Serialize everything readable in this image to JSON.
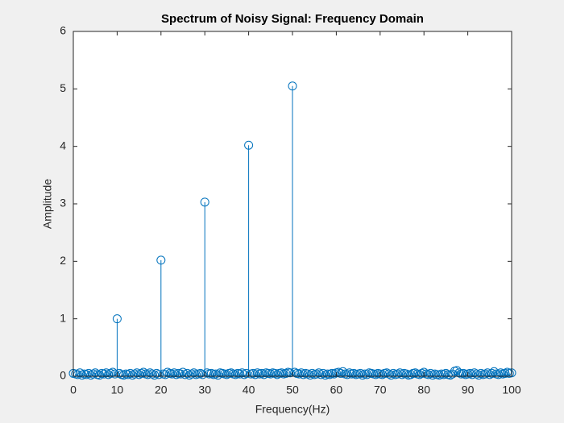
{
  "chart_data": {
    "type": "stem",
    "title": "Spectrum of Noisy Signal: Frequency Domain",
    "x_label": "Frequency(Hz)",
    "y_label": "Amplitude",
    "color": "#0072bd",
    "xlim": [
      0,
      100
    ],
    "ylim": [
      0,
      6
    ],
    "xticks": [
      0,
      10,
      20,
      30,
      40,
      50,
      60,
      70,
      80,
      90,
      100
    ],
    "yticks": [
      0,
      1,
      2,
      3,
      4,
      5,
      6
    ],
    "x": [
      0,
      0.5,
      1,
      1.5,
      2,
      2.5,
      3,
      3.5,
      4,
      4.5,
      5,
      5.5,
      6,
      6.5,
      7,
      7.5,
      8,
      8.5,
      9,
      9.5,
      10,
      10.5,
      11,
      11.5,
      12,
      12.5,
      13,
      13.5,
      14,
      14.5,
      15,
      15.5,
      16,
      16.5,
      17,
      17.5,
      18,
      18.5,
      19,
      19.5,
      20,
      20.5,
      21,
      21.5,
      22,
      22.5,
      23,
      23.5,
      24,
      24.5,
      25,
      25.5,
      26,
      26.5,
      27,
      27.5,
      28,
      28.5,
      29,
      29.5,
      30,
      30.5,
      31,
      31.5,
      32,
      32.5,
      33,
      33.5,
      34,
      34.5,
      35,
      35.5,
      36,
      36.5,
      37,
      37.5,
      38,
      38.5,
      39,
      39.5,
      40,
      40.5,
      41,
      41.5,
      42,
      42.5,
      43,
      43.5,
      44,
      44.5,
      45,
      45.5,
      46,
      46.5,
      47,
      47.5,
      48,
      48.5,
      49,
      49.5,
      50,
      50.5,
      51,
      51.5,
      52,
      52.5,
      53,
      53.5,
      54,
      54.5,
      55,
      55.5,
      56,
      56.5,
      57,
      57.5,
      58,
      58.5,
      59,
      59.5,
      60,
      60.5,
      61,
      61.5,
      62,
      62.5,
      63,
      63.5,
      64,
      64.5,
      65,
      65.5,
      66,
      66.5,
      67,
      67.5,
      68,
      68.5,
      69,
      69.5,
      70,
      70.5,
      71,
      71.5,
      72,
      72.5,
      73,
      73.5,
      74,
      74.5,
      75,
      75.5,
      76,
      76.5,
      77,
      77.5,
      78,
      78.5,
      79,
      79.5,
      80,
      80.5,
      81,
      81.5,
      82,
      82.5,
      83,
      83.5,
      84,
      84.5,
      85,
      85.5,
      86,
      86.5,
      87,
      87.5,
      88,
      88.5,
      89,
      89.5,
      90,
      90.5,
      91,
      91.5,
      92,
      92.5,
      93,
      93.5,
      94,
      94.5,
      95,
      95.5,
      96,
      96.5,
      97,
      97.5,
      98,
      98.5,
      99,
      99.5,
      100
    ],
    "values": [
      0.05,
      0.04,
      0.03,
      0.06,
      0.02,
      0.04,
      0.03,
      0.05,
      0.02,
      0.04,
      0.06,
      0.03,
      0.02,
      0.05,
      0.04,
      0.06,
      0.03,
      0.05,
      0.07,
      0.04,
      1.0,
      0.05,
      0.03,
      0.02,
      0.04,
      0.03,
      0.05,
      0.02,
      0.04,
      0.06,
      0.03,
      0.05,
      0.07,
      0.04,
      0.03,
      0.06,
      0.04,
      0.02,
      0.05,
      0.03,
      2.02,
      0.04,
      0.03,
      0.07,
      0.05,
      0.04,
      0.06,
      0.03,
      0.05,
      0.04,
      0.07,
      0.03,
      0.05,
      0.02,
      0.04,
      0.06,
      0.03,
      0.04,
      0.05,
      0.03,
      3.03,
      0.06,
      0.04,
      0.05,
      0.03,
      0.04,
      0.02,
      0.06,
      0.05,
      0.04,
      0.03,
      0.05,
      0.06,
      0.04,
      0.03,
      0.05,
      0.04,
      0.06,
      0.03,
      0.05,
      4.02,
      0.04,
      0.05,
      0.03,
      0.06,
      0.04,
      0.05,
      0.03,
      0.06,
      0.05,
      0.04,
      0.06,
      0.05,
      0.03,
      0.05,
      0.06,
      0.04,
      0.05,
      0.07,
      0.06,
      5.05,
      0.07,
      0.05,
      0.04,
      0.06,
      0.03,
      0.05,
      0.04,
      0.02,
      0.05,
      0.03,
      0.04,
      0.06,
      0.03,
      0.05,
      0.02,
      0.04,
      0.03,
      0.05,
      0.04,
      0.06,
      0.07,
      0.05,
      0.08,
      0.04,
      0.03,
      0.06,
      0.04,
      0.05,
      0.03,
      0.04,
      0.05,
      0.02,
      0.04,
      0.03,
      0.06,
      0.05,
      0.04,
      0.03,
      0.05,
      0.04,
      0.03,
      0.05,
      0.06,
      0.04,
      0.02,
      0.05,
      0.03,
      0.04,
      0.06,
      0.03,
      0.05,
      0.04,
      0.02,
      0.03,
      0.05,
      0.06,
      0.04,
      0.03,
      0.05,
      0.07,
      0.04,
      0.03,
      0.05,
      0.02,
      0.04,
      0.03,
      0.02,
      0.04,
      0.03,
      0.05,
      0.03,
      0.02,
      0.04,
      0.09,
      0.1,
      0.06,
      0.04,
      0.05,
      0.03,
      0.04,
      0.05,
      0.03,
      0.06,
      0.04,
      0.02,
      0.05,
      0.03,
      0.04,
      0.06,
      0.03,
      0.05,
      0.08,
      0.04,
      0.03,
      0.06,
      0.04,
      0.05,
      0.07,
      0.05,
      0.06
    ]
  }
}
